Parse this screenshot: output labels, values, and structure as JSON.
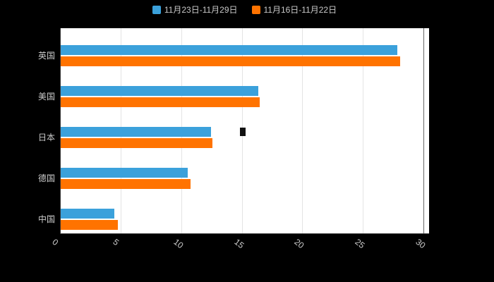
{
  "colors": {
    "page_background": "#000000",
    "plot_background": "#ffffff",
    "grid_line": "#e4e4e4",
    "axis_line": "#333333",
    "boundary_line": "#666666",
    "label_text": "#cccccc",
    "series_blue": "#3BA1DB",
    "series_orange": "#FF7300"
  },
  "legend": {
    "items": [
      {
        "label": "11月23日-11月29日",
        "color": "#3BA1DB"
      },
      {
        "label": "11月16日-11月22日",
        "color": "#FF7300"
      }
    ]
  },
  "chart_data": {
    "type": "bar",
    "orientation": "horizontal",
    "title": "",
    "categories": [
      "英国",
      "美国",
      "日本",
      "德国",
      "中国"
    ],
    "series": [
      {
        "name": "11月23日-11月29日",
        "color": "#3BA1DB",
        "values": [
          27.8,
          16.3,
          12.4,
          10.5,
          4.4
        ]
      },
      {
        "name": "11月16日-11月22日",
        "color": "#FF7300",
        "values": [
          28.0,
          16.4,
          12.5,
          10.7,
          4.7
        ]
      }
    ],
    "x_ticks": [
      0,
      5,
      10,
      15,
      20,
      25,
      30
    ],
    "xlim": [
      0,
      30
    ],
    "grid": true,
    "legend_position": "top"
  }
}
